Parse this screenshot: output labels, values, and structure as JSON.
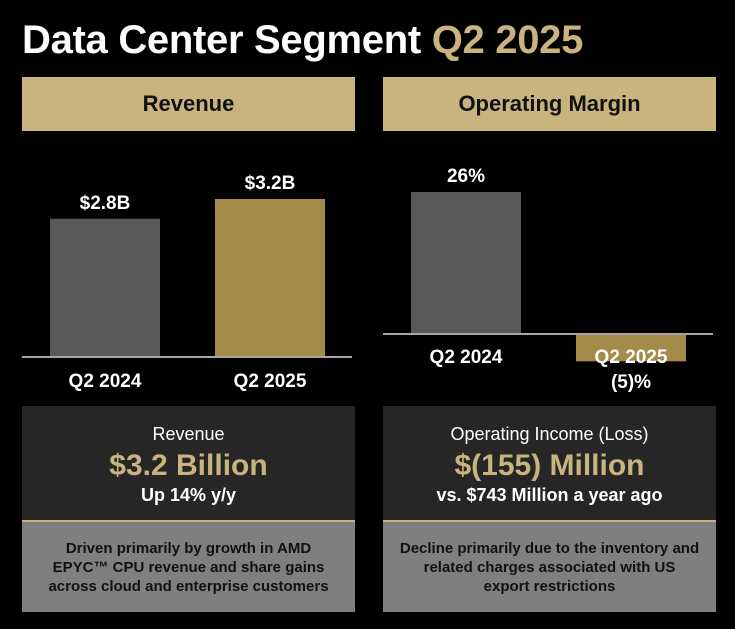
{
  "title": {
    "main": "Data Center Segment",
    "accent": "Q2 2025"
  },
  "colors": {
    "gold": "#C9B37E",
    "bar_prior": "#595959",
    "bar_current": "#A58B4A",
    "panel": "#262626",
    "note_bg": "#7f7f7f"
  },
  "revenue_panel": {
    "header": "Revenue",
    "box_label": "Revenue",
    "box_value": "$3.2 Billion",
    "box_sub": "Up 14% y/y",
    "note": "Driven primarily by growth in AMD EPYC™ CPU revenue and share gains across cloud and enterprise customers"
  },
  "margin_panel": {
    "header": "Operating Margin",
    "box_label": "Operating Income (Loss)",
    "box_value": "$(155) Million",
    "box_sub": "vs. $743 Million a year ago",
    "note": "Decline primarily due to the inventory and related charges associated with US export restrictions"
  },
  "chart_data": [
    {
      "type": "bar",
      "title": "Revenue",
      "categories": [
        "Q2 2024",
        "Q2 2025"
      ],
      "values": [
        2.8,
        3.2
      ],
      "data_labels": [
        "$2.8B",
        "$3.2B"
      ],
      "ylim": [
        0,
        3.2
      ]
    },
    {
      "type": "bar",
      "title": "Operating Margin",
      "categories": [
        "Q2 2024",
        "Q2 2025"
      ],
      "values": [
        26,
        -5
      ],
      "data_labels": [
        "26%",
        "(5)%"
      ],
      "ylim": [
        -5,
        26
      ]
    }
  ]
}
